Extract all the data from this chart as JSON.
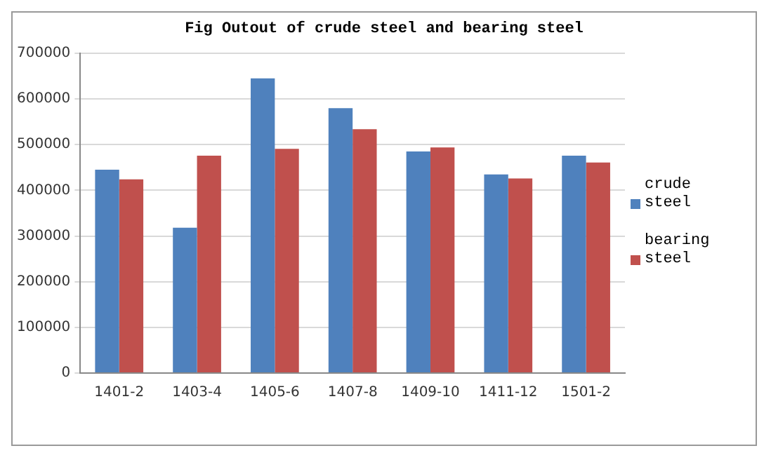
{
  "chart_data": {
    "type": "bar",
    "title": "Fig Outout of crude steel and bearing steel",
    "categories": [
      "1401-2",
      "1403-4",
      "1405-6",
      "1407-8",
      "1409-10",
      "1411-12",
      "1501-2"
    ],
    "series": [
      {
        "name": "crude steel",
        "color": "#4f81bd",
        "values": [
          445000,
          318000,
          645000,
          580000,
          485000,
          435000,
          476000
        ]
      },
      {
        "name": "bearing steel",
        "color": "#c0504d",
        "values": [
          424000,
          476000,
          491000,
          534000,
          494000,
          426000,
          461000
        ]
      }
    ],
    "ylim": [
      0,
      700000
    ],
    "yticks": [
      0,
      100000,
      200000,
      300000,
      400000,
      500000,
      600000,
      700000
    ],
    "grid": "y",
    "legend": "right"
  }
}
